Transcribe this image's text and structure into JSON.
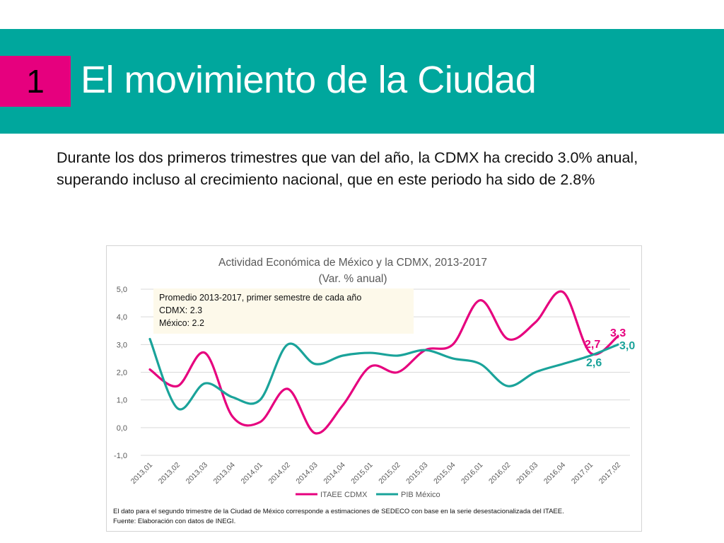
{
  "slide": {
    "number": "1",
    "title": "El movimiento de la Ciudad",
    "intro": "Durante los dos primeros trimestres que van del año, la CDMX ha crecido 3.0% anual, superando incluso al crecimiento nacional, que en este periodo ha sido de 2.8%"
  },
  "colors": {
    "banner": "#00A79D",
    "badge": "#E6007E",
    "itaee": "#E6007E",
    "pib": "#1AA39A"
  },
  "chart_data": {
    "type": "line",
    "title": "Actividad Económica de México y la CDMX, 2013-2017",
    "subtitle": "(Var. % anual)",
    "categories": [
      "2013,01",
      "2013,02",
      "2013,03",
      "2013,04",
      "2014,01",
      "2014,02",
      "2014,03",
      "2014,04",
      "2015,01",
      "2015,02",
      "2015,03",
      "2015,04",
      "2016,01",
      "2016,02",
      "2016,03",
      "2016,04",
      "2017,01",
      "2017,02"
    ],
    "series": [
      {
        "name": "ITAEE CDMX",
        "color": "#E6007E",
        "values": [
          2.1,
          1.5,
          2.7,
          0.4,
          0.2,
          1.4,
          -0.2,
          0.8,
          2.2,
          2.0,
          2.8,
          3.0,
          4.6,
          3.2,
          3.8,
          4.9,
          2.7,
          3.3
        ]
      },
      {
        "name": "PIB México",
        "color": "#1AA39A",
        "values": [
          3.2,
          0.7,
          1.6,
          1.1,
          1.0,
          3.0,
          2.3,
          2.6,
          2.7,
          2.6,
          2.8,
          2.5,
          2.3,
          1.5,
          2.0,
          2.3,
          2.6,
          3.0
        ]
      }
    ],
    "ylim": [
      -1,
      5
    ],
    "yticks": [
      "5,0",
      "4,0",
      "3,0",
      "2,0",
      "1,0",
      "0,0",
      "-1,0"
    ],
    "end_labels": {
      "itaee_last": "3,3",
      "itaee_prev": "2,7",
      "pib_last": "3,0",
      "pib_prev": "2,6"
    },
    "legend_position": "bottom",
    "grid": true,
    "note": {
      "line1": "Promedio 2013-2017, primer semestre de  cada año",
      "line2": "CDMX: 2.3",
      "line3": "México: 2.2"
    },
    "footnote": {
      "line1": "El dato para el segundo trimestre de la Ciudad de México corresponde a estimaciones de SEDECO con base en la serie desestacionalizada del ITAEE.",
      "line2": "Fuente: Elaboración con datos de INEGI."
    }
  }
}
